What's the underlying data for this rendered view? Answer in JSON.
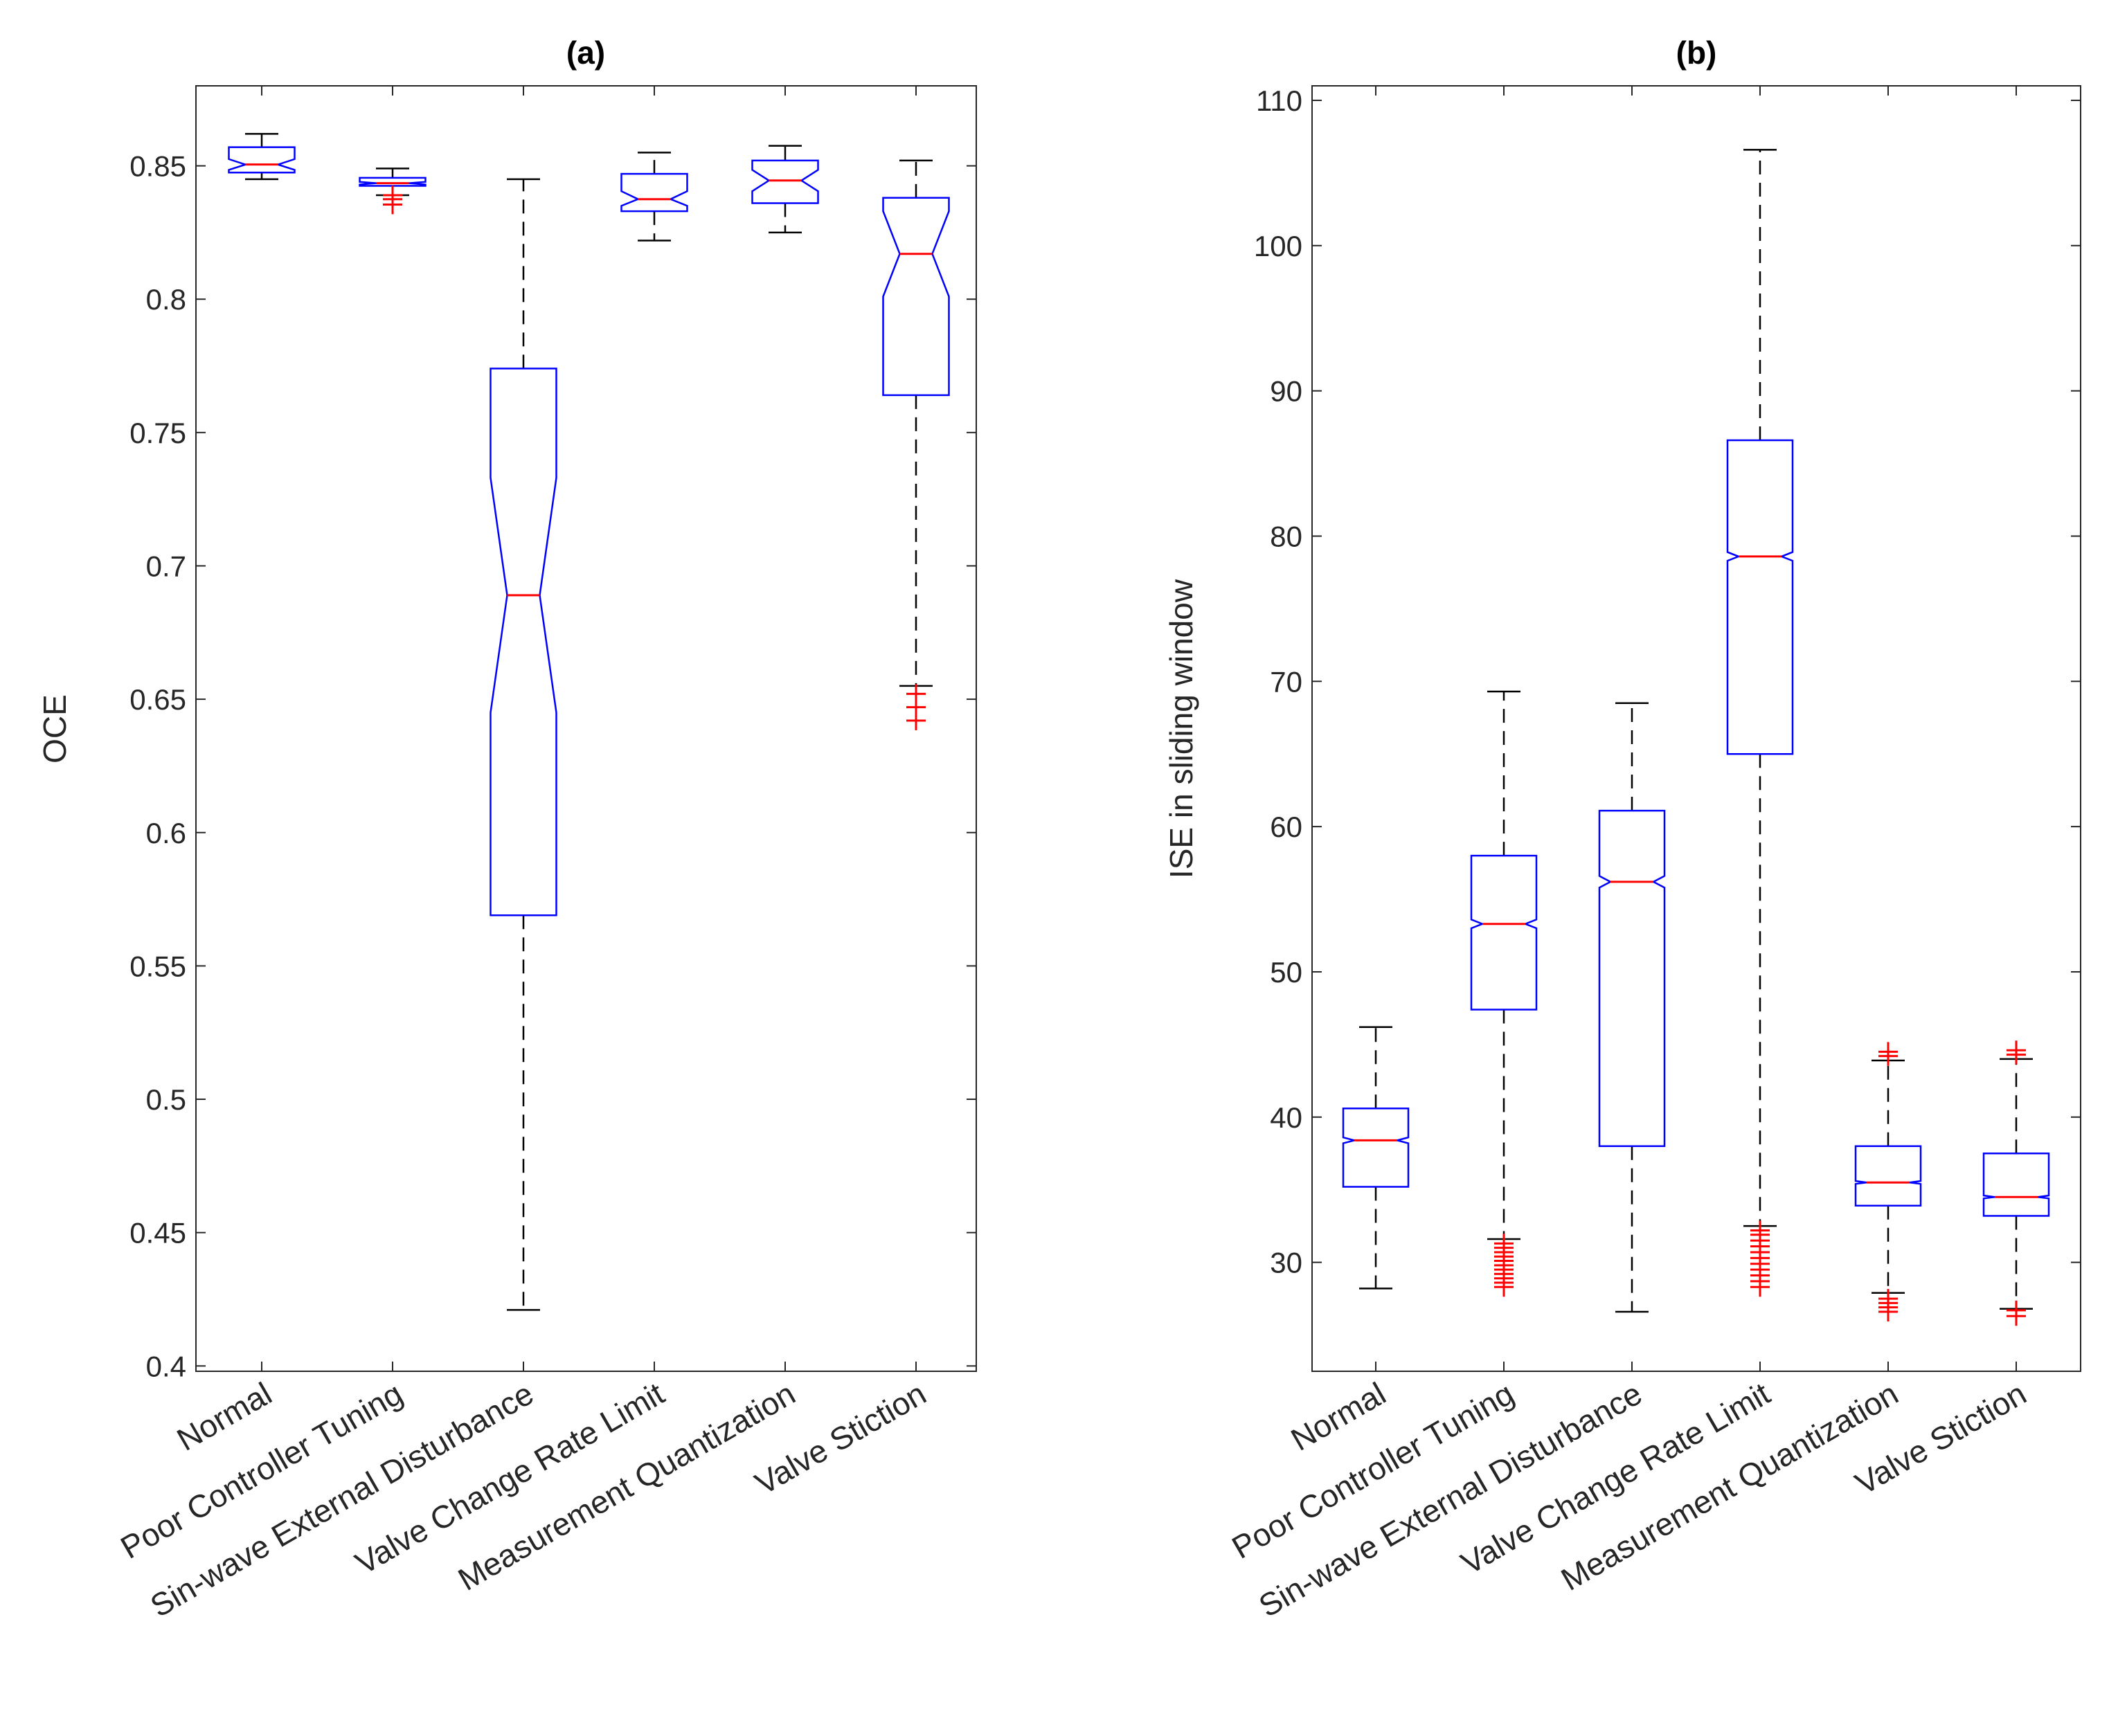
{
  "chart_data": [
    {
      "type": "boxplot",
      "title": "(a)",
      "xlabel": "",
      "ylabel": "OCE",
      "ylim": [
        0.398,
        0.88
      ],
      "yticks": [
        0.4,
        0.45,
        0.5,
        0.55,
        0.6,
        0.65,
        0.7,
        0.75,
        0.8,
        0.85
      ],
      "ytick_labels": [
        "0.4",
        "0.45",
        "0.5",
        "0.55",
        "0.6",
        "0.65",
        "0.7",
        "0.75",
        "0.8",
        "0.85"
      ],
      "categories": [
        "Normal",
        "Poor Controller Tuning",
        "Sin-wave External Disturbance",
        "Valve Change Rate Limit",
        "Measurement Quantization",
        "Valve Stiction"
      ],
      "boxes": [
        {
          "whisker_low": 0.845,
          "q1": 0.8475,
          "median": 0.8505,
          "q3": 0.857,
          "whisker_high": 0.862,
          "notch_low": 0.8485,
          "notch_high": 0.8525,
          "outliers": []
        },
        {
          "whisker_low": 0.839,
          "q1": 0.8425,
          "median": 0.8435,
          "q3": 0.8455,
          "whisker_high": 0.849,
          "notch_low": 0.843,
          "notch_high": 0.844,
          "outliers": [
            0.8355,
            0.8375,
            0.839
          ]
        },
        {
          "whisker_low": 0.421,
          "q1": 0.569,
          "median": 0.689,
          "q3": 0.774,
          "whisker_high": 0.845,
          "notch_low": 0.645,
          "notch_high": 0.733,
          "outliers": []
        },
        {
          "whisker_low": 0.822,
          "q1": 0.833,
          "median": 0.8375,
          "q3": 0.847,
          "whisker_high": 0.855,
          "notch_low": 0.835,
          "notch_high": 0.8405,
          "outliers": []
        },
        {
          "whisker_low": 0.825,
          "q1": 0.836,
          "median": 0.8445,
          "q3": 0.852,
          "whisker_high": 0.8575,
          "notch_low": 0.8405,
          "notch_high": 0.8485,
          "outliers": []
        },
        {
          "whisker_low": 0.655,
          "q1": 0.764,
          "median": 0.817,
          "q3": 0.838,
          "whisker_high": 0.852,
          "notch_low": 0.801,
          "notch_high": 0.833,
          "outliers": [
            0.642,
            0.647,
            0.652
          ]
        }
      ]
    },
    {
      "type": "boxplot",
      "title": "(b)",
      "xlabel": "",
      "ylabel": "ISE in sliding window",
      "ylim": [
        22.5,
        111
      ],
      "yticks": [
        30,
        40,
        50,
        60,
        70,
        80,
        90,
        100,
        110
      ],
      "ytick_labels": [
        "30",
        "40",
        "50",
        "60",
        "70",
        "80",
        "90",
        "100",
        "110"
      ],
      "categories": [
        "Normal",
        "Poor Controller Tuning",
        "Sin-wave External Disturbance",
        "Valve Change Rate Limit",
        "Measurement Quantization",
        "Valve Stiction"
      ],
      "boxes": [
        {
          "whisker_low": 28.2,
          "q1": 35.2,
          "median": 38.4,
          "q3": 40.6,
          "whisker_high": 46.2,
          "notch_low": 38.2,
          "notch_high": 38.6,
          "outliers": []
        },
        {
          "whisker_low": 31.6,
          "q1": 47.4,
          "median": 53.3,
          "q3": 58,
          "whisker_high": 69.3,
          "notch_low": 53.0,
          "notch_high": 53.6,
          "outliers": [
            28.3,
            28.6,
            28.9,
            29.2,
            29.5,
            29.8,
            30.1,
            30.4,
            30.7,
            31.0,
            31.3
          ]
        },
        {
          "whisker_low": 26.6,
          "q1": 38,
          "median": 56.2,
          "q3": 61.1,
          "whisker_high": 68.5,
          "notch_low": 55.8,
          "notch_high": 56.6,
          "outliers": []
        },
        {
          "whisker_low": 32.5,
          "q1": 65,
          "median": 78.6,
          "q3": 86.6,
          "whisker_high": 106.6,
          "notch_low": 78.3,
          "notch_high": 78.9,
          "outliers": [
            28.3,
            28.7,
            29.1,
            29.5,
            29.9,
            30.3,
            30.7,
            31.1,
            31.5,
            31.9,
            32.2
          ]
        },
        {
          "whisker_low": 27.9,
          "q1": 33.9,
          "median": 35.5,
          "q3": 38,
          "whisker_high": 43.9,
          "notch_low": 35.4,
          "notch_high": 35.6,
          "outliers": [
            26.6,
            26.9,
            27.2,
            27.5,
            44.2,
            44.5
          ]
        },
        {
          "whisker_low": 26.8,
          "q1": 33.2,
          "median": 34.5,
          "q3": 37.5,
          "whisker_high": 44,
          "notch_low": 34.4,
          "notch_high": 34.6,
          "outliers": [
            26.3,
            26.7,
            44.3,
            44.6
          ]
        }
      ]
    }
  ]
}
